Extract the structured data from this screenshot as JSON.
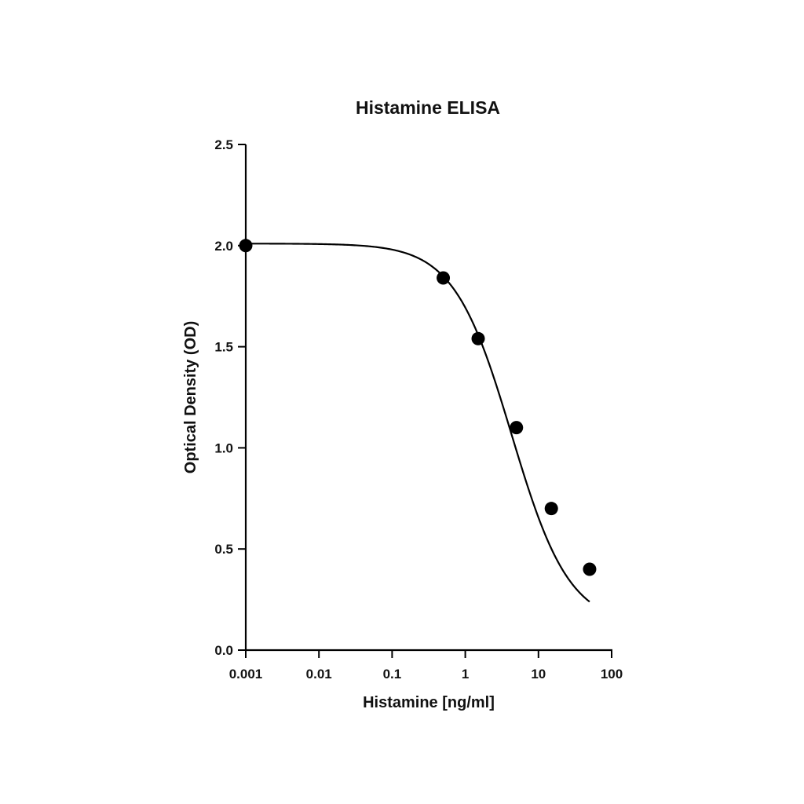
{
  "chart_data": {
    "type": "scatter",
    "title": "Histamine ELISA",
    "xlabel": "Histamine [ng/ml]",
    "ylabel": "Optical Density (OD)",
    "x_scale": "log",
    "xlim": [
      0.001,
      100
    ],
    "ylim": [
      0,
      2.5
    ],
    "x_ticks": [
      "0.001",
      "0.01",
      "0.1",
      "1",
      "10",
      "100"
    ],
    "y_ticks": [
      "0.0",
      "0.5",
      "1.0",
      "1.5",
      "2.0",
      "2.5"
    ],
    "grid": false,
    "legend": "none",
    "series": [
      {
        "x": [
          0.001,
          0.5,
          1.5,
          5,
          15,
          50
        ],
        "y": [
          2.0,
          1.84,
          1.54,
          1.1,
          0.7,
          0.4
        ]
      }
    ],
    "fit_curve": {
      "model": "4PL",
      "top": 2.01,
      "bottom": 0.12,
      "ec50": 4.3,
      "hill": 1.1
    },
    "colors": {
      "marker": "#000000",
      "line": "#000000",
      "axis": "#000000"
    }
  }
}
